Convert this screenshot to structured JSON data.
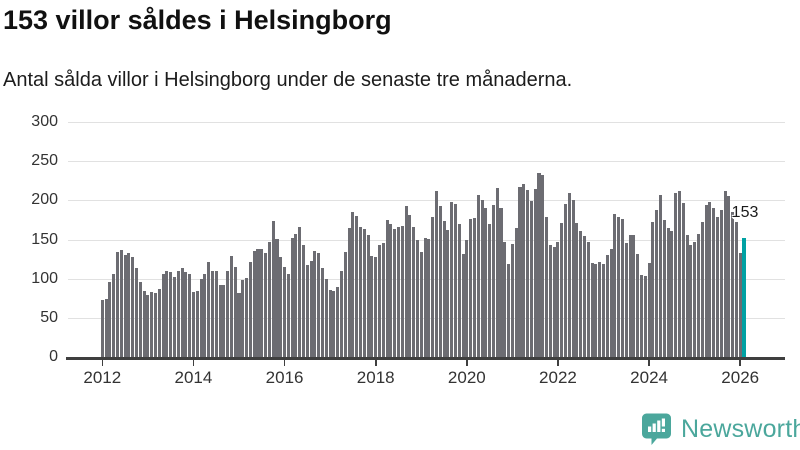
{
  "header": {
    "title": "153 villor såldes i Helsingborg",
    "subtitle": "Antal sålda villor i Helsingborg under de senaste tre månaderna."
  },
  "annotation": {
    "latest_value_label": "153"
  },
  "footer": {
    "brand": "Newsworthy"
  },
  "colors": {
    "bar": "#6c6c72",
    "highlight": "#00a1a3",
    "logo_teal": "#4ba79c",
    "grid": "#e1e1e1",
    "axis": "#3f3f3f",
    "label_text": "#333333",
    "title_text": "#111111"
  },
  "chart_data": {
    "type": "bar",
    "title": "153 villor såldes i Helsingborg",
    "subtitle": "Antal sålda villor i Helsingborg under de senaste tre månaderna.",
    "x_start": "2012-01",
    "x_end": "2026-02",
    "x_tick_labels": [
      "2012",
      "2014",
      "2016",
      "2018",
      "2020",
      "2022",
      "2024",
      "2026"
    ],
    "y_ticks": [
      0,
      50,
      100,
      150,
      200,
      250,
      300
    ],
    "ylim": [
      0,
      300
    ],
    "grid": true,
    "legend": "none",
    "highlight_last_bar": true,
    "last_value_label": "153",
    "values": [
      73,
      75,
      97,
      106,
      135,
      137,
      131,
      133,
      128,
      114,
      96,
      85,
      80,
      83,
      82,
      88,
      107,
      110,
      109,
      103,
      111,
      114,
      109,
      106,
      83,
      85,
      100,
      106,
      122,
      111,
      110,
      92,
      93,
      111,
      129,
      116,
      82,
      99,
      101,
      122,
      136,
      138,
      138,
      133,
      148,
      174,
      151,
      128,
      115,
      107,
      153,
      158,
      167,
      143,
      118,
      123,
      136,
      134,
      114,
      100,
      86,
      85,
      90,
      110,
      135,
      165,
      186,
      181,
      166,
      164,
      157,
      130,
      128,
      144,
      146,
      176,
      170,
      164,
      167,
      168,
      193,
      182,
      167,
      150,
      135,
      152,
      151,
      180,
      213,
      193,
      174,
      163,
      198,
      196,
      170,
      132,
      150,
      177,
      178,
      208,
      201,
      191,
      171,
      195,
      216,
      191,
      148,
      120,
      145,
      165,
      218,
      221,
      214,
      200,
      215,
      236,
      233,
      180,
      144,
      141,
      147,
      172,
      196,
      210,
      201,
      172,
      162,
      155,
      148,
      121,
      120,
      122,
      120,
      131,
      139,
      183,
      180,
      177,
      146,
      157,
      156,
      132,
      105,
      104,
      121,
      173,
      188,
      208,
      176,
      165,
      161,
      210,
      212,
      197,
      156,
      144,
      148,
      158,
      173,
      195,
      198,
      191,
      179,
      188,
      212,
      206,
      186,
      173,
      134,
      153
    ]
  }
}
